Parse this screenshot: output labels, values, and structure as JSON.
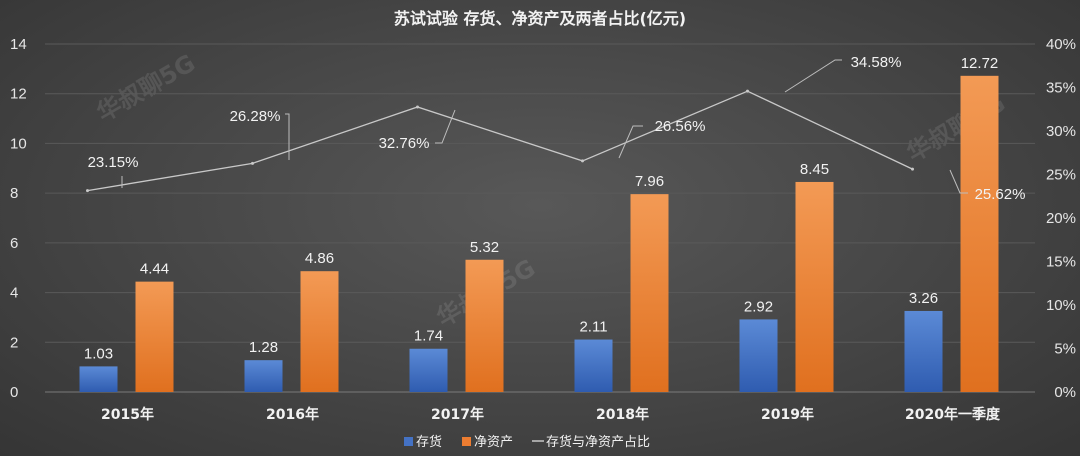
{
  "chart_data": {
    "type": "bar",
    "title": "苏试试验 存货、净资产及两者占比(亿元)",
    "categories": [
      "2015年",
      "2016年",
      "2017年",
      "2018年",
      "2019年",
      "2020年一季度"
    ],
    "y_left": {
      "min": 0,
      "max": 14,
      "ticks": [
        "0",
        "2",
        "4",
        "6",
        "8",
        "10",
        "12",
        "14"
      ]
    },
    "y_right": {
      "min": 0,
      "max": 40,
      "ticks": [
        "0%",
        "5%",
        "10%",
        "15%",
        "20%",
        "25%",
        "30%",
        "35%",
        "40%"
      ]
    },
    "grid": true,
    "series": [
      {
        "name": "存货",
        "kind": "bar",
        "axis": "left",
        "color": "#4472c4",
        "values": [
          1.03,
          1.28,
          1.74,
          2.11,
          2.92,
          3.26
        ],
        "labels": [
          "1.03",
          "1.28",
          "1.74",
          "2.11",
          "2.92",
          "3.26"
        ]
      },
      {
        "name": "净资产",
        "kind": "bar",
        "axis": "left",
        "color": "#ed7d31",
        "values": [
          4.44,
          4.86,
          5.32,
          7.96,
          8.45,
          12.72
        ],
        "labels": [
          "4.44",
          "4.86",
          "5.32",
          "7.96",
          "8.45",
          "12.72"
        ]
      },
      {
        "name": "存货与净资产占比",
        "kind": "line",
        "axis": "right",
        "color": "#c8c8c8",
        "values": [
          23.15,
          26.28,
          32.76,
          26.56,
          34.58,
          25.62
        ],
        "labels": [
          "23.15%",
          "26.28%",
          "32.76%",
          "26.56%",
          "34.58%",
          "25.62%"
        ]
      }
    ],
    "legend": {
      "position": "bottom",
      "entries": [
        "存货",
        "净资产",
        "存货与净资产占比"
      ]
    },
    "watermark": "华叔聊5G"
  }
}
